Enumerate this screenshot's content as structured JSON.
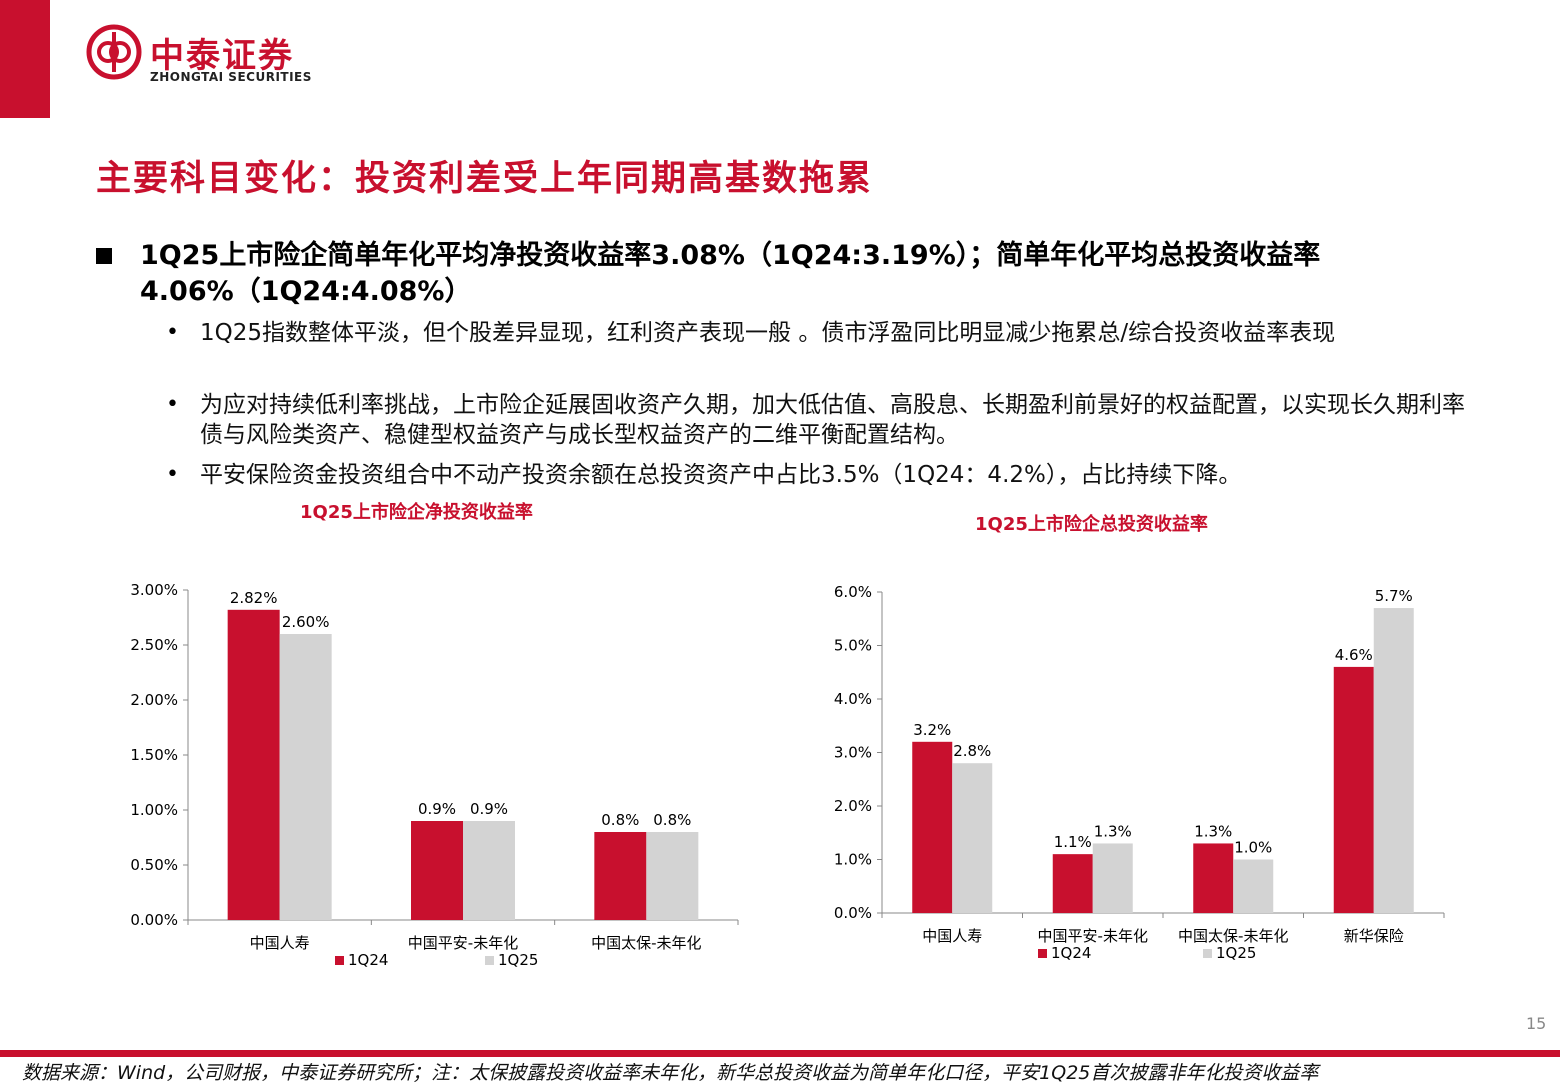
{
  "header": {
    "logo_cn": "中泰证券",
    "logo_en": "ZHONGTAI SECURITIES",
    "brand_color": "#c8102e"
  },
  "slide": {
    "title": "主要科目变化：投资利差受上年同期高基数拖累",
    "main_point": "1Q25上市险企简单年化平均净投资收益率3.08%（1Q24:3.19%）；简单年化平均总投资收益率4.06%（1Q24:4.08%）",
    "sub_points": [
      "1Q25指数整体平淡，但个股差异显现，红利资产表现一般 。债市浮盈同比明显减少拖累总/综合投资收益率表现",
      "为应对持续低利率挑战，上市险企延展固收资产久期，加大低估值、高股息、长期盈利前景好的权益配置，以实现长久期利率债与风险类资产、稳健型权益资产与成长型权益资产的二维平衡配置结构。",
      "平安保险资金投资组合中不动产投资余额在总投资资产中占比3.5%（1Q24：4.2%），占比持续下降。"
    ],
    "page_number": "15"
  },
  "chart_data": [
    {
      "type": "bar",
      "title": "1Q25上市险企净投资收益率",
      "categories": [
        "中国人寿",
        "中国平安-未年化",
        "中国太保-未年化"
      ],
      "series": [
        {
          "name": "1Q24",
          "values": [
            2.82,
            0.9,
            0.8
          ],
          "labels": [
            "2.82%",
            "0.9%",
            "0.8%"
          ],
          "color": "#c8102e"
        },
        {
          "name": "1Q25",
          "values": [
            2.6,
            0.9,
            0.8
          ],
          "labels": [
            "2.60%",
            "0.9%",
            "0.8%"
          ],
          "color": "#d3d3d3"
        }
      ],
      "yticks": [
        "0.00%",
        "0.50%",
        "1.00%",
        "1.50%",
        "2.00%",
        "2.50%",
        "3.00%"
      ],
      "ylim": [
        0,
        3.0
      ],
      "grid": false,
      "legend": "bottom"
    },
    {
      "type": "bar",
      "title": "1Q25上市险企总投资收益率",
      "categories": [
        "中国人寿",
        "中国平安-未年化",
        "中国太保-未年化",
        "新华保险"
      ],
      "series": [
        {
          "name": "1Q24",
          "values": [
            3.2,
            1.1,
            1.3,
            4.6
          ],
          "labels": [
            "3.2%",
            "1.1%",
            "1.3%",
            "4.6%"
          ],
          "color": "#c8102e"
        },
        {
          "name": "1Q25",
          "values": [
            2.8,
            1.3,
            1.0,
            5.7
          ],
          "labels": [
            "2.8%",
            "1.3%",
            "1.0%",
            "5.7%"
          ],
          "color": "#d3d3d3"
        }
      ],
      "yticks": [
        "0.0%",
        "1.0%",
        "2.0%",
        "3.0%",
        "4.0%",
        "5.0%",
        "6.0%"
      ],
      "ylim": [
        0,
        6.0
      ],
      "grid": false,
      "legend": "bottom"
    }
  ],
  "footer": {
    "source": "数据来源：Wind，公司财报，中泰证券研究所；注：太保披露投资收益率未年化，新华总投资收益为简单年化口径，平安1Q25首次披露非年化投资收益率"
  }
}
